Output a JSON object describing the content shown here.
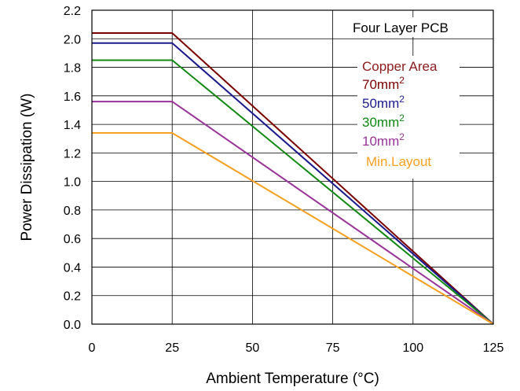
{
  "chart_data": {
    "type": "line",
    "xlabel": "Ambient Temperature (°C)",
    "ylabel": "Power Dissipation (W)",
    "xlim": [
      0,
      125
    ],
    "ylim": [
      0,
      2.2
    ],
    "xticks": [
      "0",
      "25",
      "50",
      "75",
      "100",
      "125"
    ],
    "yticks": [
      "0.0",
      "0.2",
      "0.4",
      "0.6",
      "0.8",
      "1.0",
      "1.2",
      "1.4",
      "1.6",
      "1.8",
      "2.0",
      "2.2"
    ],
    "grid": true,
    "legend_box_label": "Four Layer PCB",
    "legend_title": "Copper Area",
    "legend_title_color": "#8b1a1a",
    "legend_placement": "top-right",
    "series": [
      {
        "name": "70mm",
        "superscript": "2",
        "color": "#7a0000",
        "x": [
          0,
          25,
          125
        ],
        "y": [
          2.04,
          2.04,
          0
        ]
      },
      {
        "name": "50mm",
        "superscript": "2",
        "color": "#1a1a8c",
        "x": [
          0,
          25,
          125
        ],
        "y": [
          1.97,
          1.97,
          0
        ]
      },
      {
        "name": "30mm",
        "superscript": "2",
        "color": "#118811",
        "x": [
          0,
          25,
          125
        ],
        "y": [
          1.85,
          1.85,
          0
        ]
      },
      {
        "name": "10mm",
        "superscript": "2",
        "color": "#993399",
        "x": [
          0,
          25,
          125
        ],
        "y": [
          1.56,
          1.56,
          0
        ]
      },
      {
        "name": "Min.Layout",
        "superscript": "",
        "color": "#f5a020",
        "x": [
          0,
          25,
          125
        ],
        "y": [
          1.34,
          1.34,
          0
        ]
      }
    ]
  }
}
